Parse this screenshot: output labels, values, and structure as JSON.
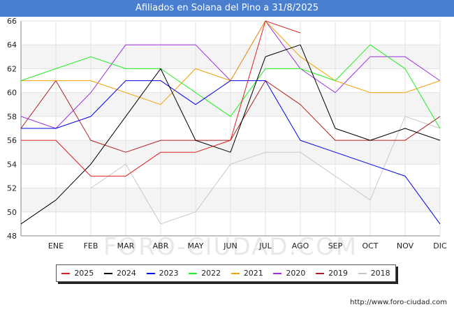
{
  "title": "Afiliados en Solana del Pino a 31/8/2025",
  "source": "http://www.foro-ciudad.com",
  "watermark": "FORO-CIUDAD.COM",
  "chart_data": {
    "type": "line",
    "title": "Afiliados en Solana del Pino a 31/8/2025",
    "xlabel": "",
    "ylabel": "",
    "x": [
      "",
      "ENE",
      "FEB",
      "MAR",
      "ABR",
      "MAY",
      "JUN",
      "JUL",
      "AGO",
      "SEP",
      "OCT",
      "NOV",
      "DIC"
    ],
    "ylim": [
      48,
      66
    ],
    "yticks": [
      48,
      50,
      52,
      54,
      56,
      58,
      60,
      62,
      64,
      66
    ],
    "grid": true,
    "legend_position": "bottom",
    "series": [
      {
        "name": "2025",
        "color": "#e02020",
        "values": [
          56,
          56,
          53,
          53,
          55,
          55,
          56,
          66,
          65,
          null,
          null,
          null,
          null
        ]
      },
      {
        "name": "2024",
        "color": "#000000",
        "values": [
          49,
          51,
          54,
          58,
          62,
          56,
          55,
          63,
          64,
          57,
          56,
          57,
          56
        ]
      },
      {
        "name": "2023",
        "color": "#0000ee",
        "values": [
          57,
          57,
          58,
          61,
          61,
          59,
          61,
          61,
          56,
          55,
          54,
          53,
          49
        ]
      },
      {
        "name": "2022",
        "color": "#22ee22",
        "values": [
          61,
          62,
          63,
          62,
          62,
          60,
          58,
          62,
          62,
          61,
          64,
          62,
          57
        ]
      },
      {
        "name": "2021",
        "color": "#f0a000",
        "values": [
          61,
          61,
          61,
          60,
          59,
          62,
          61,
          66,
          63,
          61,
          60,
          60,
          61
        ]
      },
      {
        "name": "2020",
        "color": "#a030e0",
        "values": [
          58,
          57,
          60,
          64,
          64,
          64,
          61,
          66,
          62,
          60,
          63,
          63,
          61
        ]
      },
      {
        "name": "2019",
        "color": "#b02020",
        "values": [
          57,
          61,
          56,
          55,
          56,
          56,
          56,
          61,
          59,
          56,
          56,
          56,
          58
        ]
      },
      {
        "name": "2018",
        "color": "#c8c8c8",
        "values": [
          null,
          null,
          52,
          54,
          49,
          50,
          54,
          55,
          55,
          53,
          51,
          58,
          57
        ]
      }
    ]
  }
}
